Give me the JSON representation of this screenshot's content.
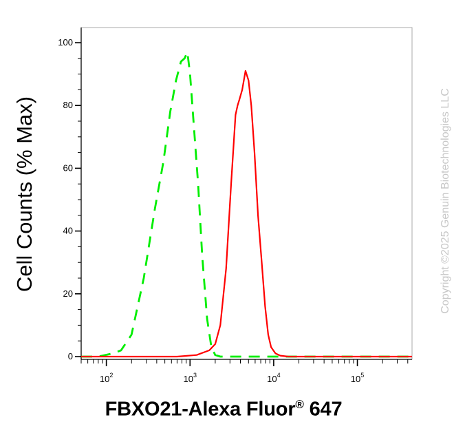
{
  "chart_data": {
    "type": "line",
    "xlabel_main": "FBXO21-Alexa Fluor",
    "xlabel_reg": "®",
    "xlabel_tail": " 647",
    "ylabel": "Cell Counts (% Max)",
    "x_scale": "log",
    "xlim": [
      50,
      450000
    ],
    "ylim": [
      0,
      100
    ],
    "x_ticks": [
      {
        "value": 100,
        "base": "10",
        "exp": "2"
      },
      {
        "value": 1000,
        "base": "10",
        "exp": "3"
      },
      {
        "value": 10000,
        "base": "10",
        "exp": "4"
      },
      {
        "value": 100000,
        "base": "10",
        "exp": "5"
      }
    ],
    "y_ticks": [
      0,
      20,
      40,
      60,
      80,
      100
    ],
    "series": [
      {
        "color": "#00ee00",
        "dash": "dashed",
        "x": [
          50,
          80,
          120,
          150,
          200,
          280,
          380,
          480,
          580,
          680,
          780,
          860,
          930,
          1000,
          1100,
          1250,
          1400,
          1600,
          1800,
          2000,
          2300,
          3000,
          5000,
          10000,
          450000
        ],
        "y": [
          0,
          0,
          1,
          2,
          7,
          25,
          47,
          62,
          78,
          88,
          94,
          95,
          97,
          90,
          75,
          55,
          32,
          12,
          3,
          0.5,
          0,
          0,
          0,
          0,
          0
        ]
      },
      {
        "color": "#ff0000",
        "dash": "solid",
        "x": [
          50,
          700,
          1200,
          1700,
          2000,
          2300,
          2700,
          3100,
          3500,
          3700,
          3900,
          4200,
          4600,
          5000,
          5400,
          5900,
          6500,
          7200,
          7900,
          8600,
          9300,
          10500,
          12000,
          15000,
          450000
        ],
        "y": [
          0,
          0,
          0.5,
          2,
          4,
          10,
          28,
          55,
          77,
          80,
          82,
          85,
          91,
          88,
          80,
          65,
          45,
          30,
          16,
          7,
          3,
          1,
          0.3,
          0,
          0
        ]
      }
    ]
  },
  "watermark": "Copyright ©2025 Genuin Biotechnologies LLC"
}
